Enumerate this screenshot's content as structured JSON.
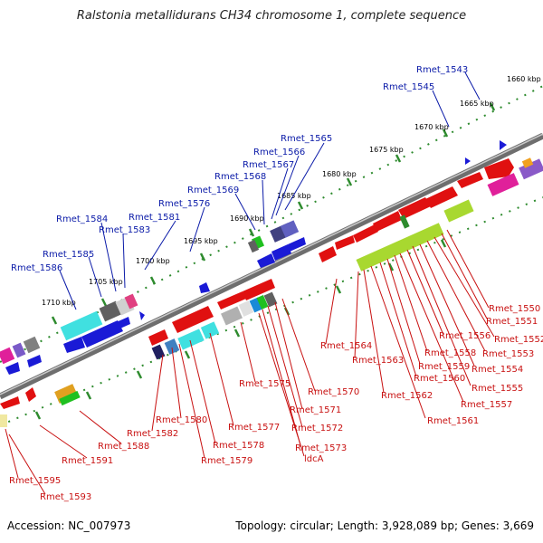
{
  "title": "Ralstonia metallidurans CH34 chromosome 1, complete sequence",
  "footer": {
    "accession": "Accession: NC_007973",
    "summary": "Topology: circular; Length: 3,928,089 bp; Genes: 3,669"
  },
  "scale_labels": [
    "1660 kbp",
    "1665 kbp",
    "1670 kbp",
    "1675 kbp",
    "1680 kbp",
    "1685 kbp",
    "1690 kbp",
    "1695 kbp",
    "1700 kbp",
    "1705 kbp",
    "1710 kbp"
  ],
  "top_labels": [
    "Rmet_1543",
    "Rmet_1545",
    "Rmet_1565",
    "Rmet_1566",
    "Rmet_1567",
    "Rmet_1568",
    "Rmet_1569",
    "Rmet_1576",
    "Rmet_1581",
    "Rmet_1584",
    "Rmet_1583",
    "Rmet_1585",
    "Rmet_1586"
  ],
  "bottom_labels": [
    "Rmet_1550",
    "Rmet_1551",
    "Rmet_1552",
    "Rmet_1553",
    "Rmet_1554",
    "Rmet_1555",
    "Rmet_1556",
    "Rmet_1557",
    "Rmet_1558",
    "Rmet_1559",
    "Rmet_1560",
    "Rmet_1561",
    "Rmet_1562",
    "Rmet_1563",
    "Rmet_1564",
    "Rmet_1570",
    "Rmet_1571",
    "Rmet_1572",
    "Rmet_1573",
    "ldcA",
    "Rmet_1575",
    "Rmet_1577",
    "Rmet_1578",
    "Rmet_1579",
    "Rmet_1580",
    "Rmet_1582",
    "Rmet_1588",
    "Rmet_1591",
    "Rmet_1593",
    "Rmet_1595"
  ],
  "colors": {
    "forward_strand": "#1a1ad6",
    "reverse_strand": "#e01010",
    "backbone": "#6e6e6e",
    "tick_dots": "#2e8b2e",
    "label_blue": "#0a1aa8",
    "label_red": "#c81010"
  }
}
